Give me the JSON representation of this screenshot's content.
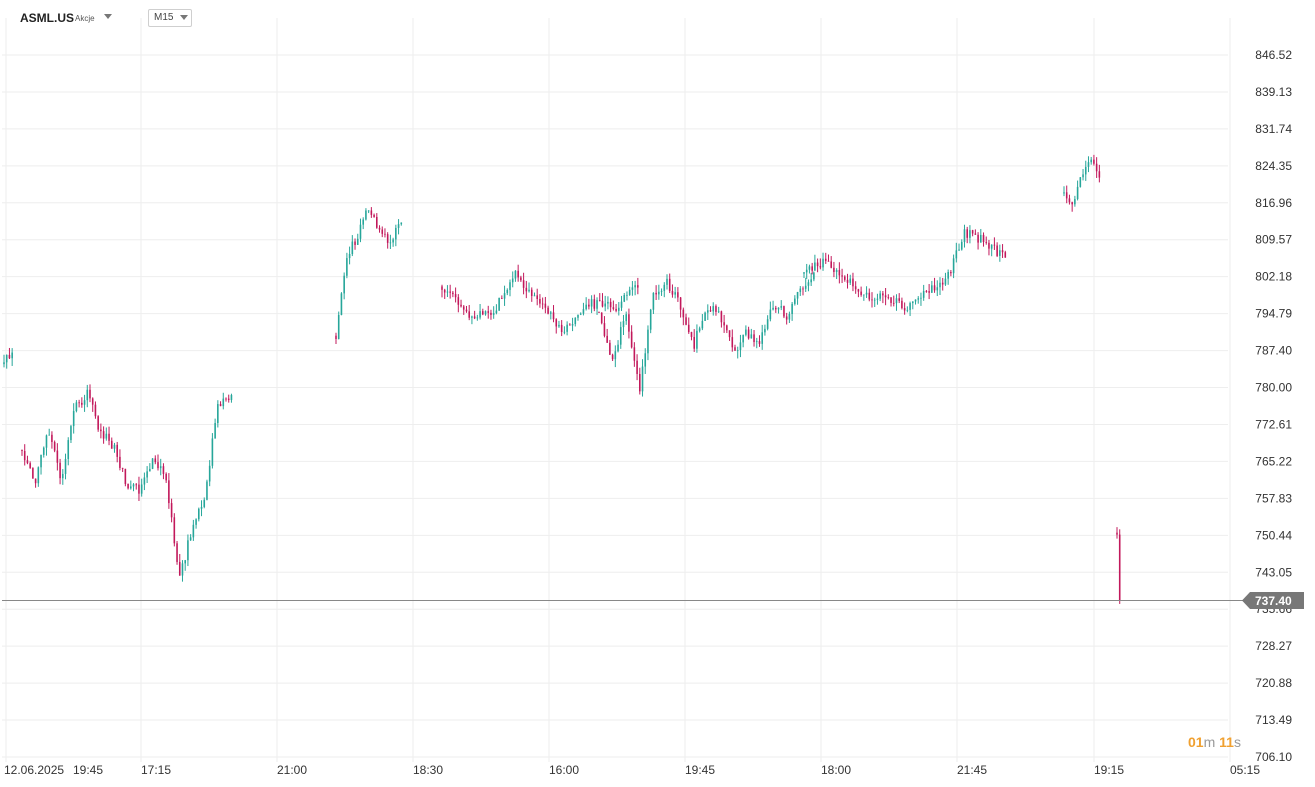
{
  "header": {
    "symbol": "ASML.US",
    "instrument_type": "Akcje",
    "timeframe": "M15"
  },
  "current_price": {
    "label": "737.40",
    "value": 737.4
  },
  "countdown": {
    "minutes": "01",
    "minutes_unit": "m",
    "seconds": "11",
    "seconds_unit": "s"
  },
  "colors": {
    "up": "#26a69a",
    "down": "#c2185b",
    "grid": "#eeeeee",
    "price_line": "#888888",
    "countdown": "#f0a030"
  },
  "chart_data": {
    "type": "candlestick",
    "y_ticks": [
      "846.52",
      "839.13",
      "831.74",
      "824.35",
      "816.96",
      "809.57",
      "802.18",
      "794.79",
      "787.40",
      "780.00",
      "772.61",
      "765.22",
      "757.83",
      "750.44",
      "743.05",
      "735.66",
      "728.27",
      "720.88",
      "713.49",
      "706.10"
    ],
    "x_ticks": [
      "12.06.2025",
      "19:45",
      "17:15",
      "21:00",
      "18:30",
      "16:00",
      "19:45",
      "18:00",
      "21:45",
      "19:15",
      "05:15"
    ],
    "ylim": [
      706.1,
      846.52
    ],
    "grid": true,
    "segments": [
      {
        "bars": 4,
        "path": [
          785.8,
          787.0
        ]
      },
      {
        "bars": 78,
        "path": [
          767.0,
          761.0,
          772.0,
          760.5,
          776.0,
          778.5,
          771.0,
          768.0,
          761.0,
          759.5,
          766.0,
          762.5,
          741.0,
          752.0,
          759.0,
          777.0,
          778.5
        ]
      },
      {
        "bars": 25,
        "path": [
          790.0,
          806.0,
          810.5,
          816.5,
          811.0,
          809.0,
          813.0
        ]
      },
      {
        "bars": 73,
        "path": [
          800.5,
          795.0,
          794.5,
          803.0,
          797.0,
          791.0,
          797.0,
          796.0,
          800.0
        ]
      },
      {
        "bars": 80,
        "path": [
          795.0,
          785.0,
          795.0,
          779.0,
          798.0,
          801.0,
          797.0,
          788.0,
          796.0,
          795.0,
          787.0,
          791.0,
          789.0,
          797.0,
          794.0,
          800.0,
          803.0
        ]
      },
      {
        "bars": 75,
        "path": [
          803.0,
          805.5,
          802.0,
          798.0,
          799.0,
          796.0,
          799.0,
          801.0,
          811.0,
          809.0,
          806.0
        ]
      },
      {
        "bars": 14,
        "path": [
          818.0,
          816.0,
          822.0,
          825.0,
          822.0
        ]
      },
      {
        "bars": 2,
        "path": [
          750.0,
          737.4
        ]
      }
    ],
    "last_price": 737.4
  }
}
